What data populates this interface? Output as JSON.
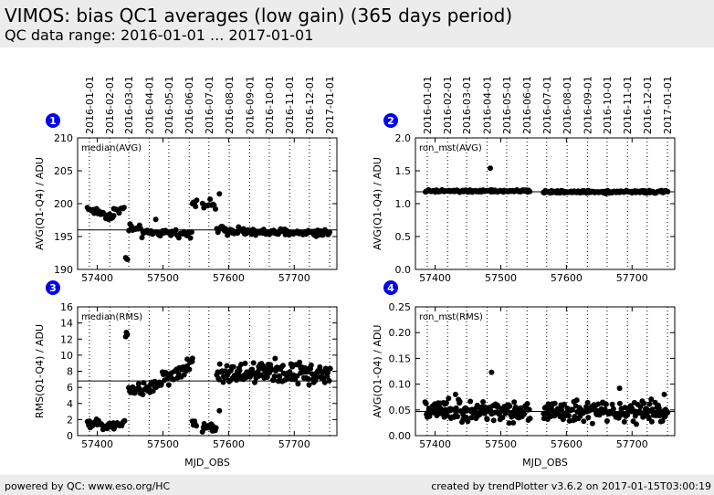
{
  "header": {
    "title": "VIMOS: bias QC1 averages (low gain) (365 days period)",
    "subtitle": "QC data range: 2016-01-01 ... 2017-01-01"
  },
  "footer": {
    "left": "powered by QC: www.eso.org/HC",
    "right": "created by trendPlotter v3.6.2 on 2017-01-15T03:00:19"
  },
  "date_ticks": [
    "2016-01-01",
    "2016-02-01",
    "2016-03-01",
    "2016-04-01",
    "2016-05-01",
    "2016-06-01",
    "2016-07-01",
    "2016-08-01",
    "2016-09-01",
    "2016-10-01",
    "2016-11-01",
    "2016-12-01",
    "2017-01-01"
  ],
  "date_tick_mjd": [
    57388,
    57419,
    57448,
    57479,
    57509,
    57540,
    57570,
    57601,
    57632,
    57662,
    57693,
    57723,
    57754
  ],
  "colors": {
    "badge": "#0000ee",
    "points": "#000000",
    "header_bg": "#ececec"
  },
  "chart_data": [
    {
      "id": "1",
      "type": "scatter",
      "label": "median(AVG)",
      "xlabel": "",
      "ylabel": "AVG(Q1-Q4) / ADU",
      "xlim": [
        57370,
        57765
      ],
      "ylim": [
        190,
        210
      ],
      "yticks": [
        "190",
        "195",
        "200",
        "205",
        "210"
      ],
      "xticks": [
        "57400",
        "57500",
        "57600",
        "57700"
      ],
      "reference_line": 196,
      "segments": [
        {
          "x0": 57385,
          "x1": 57425,
          "y": 199.3,
          "slope": -0.035,
          "noise": 0.5,
          "step": 2
        },
        {
          "x0": 57425,
          "x1": 57442,
          "y": 199.1,
          "slope": 0,
          "noise": 0.5,
          "step": 2
        },
        {
          "x0": 57443,
          "x1": 57447,
          "y": 191.7,
          "slope": 0,
          "noise": 0.3,
          "step": 1.5
        },
        {
          "x0": 57448,
          "x1": 57470,
          "y": 196.2,
          "slope": -0.02,
          "noise": 0.6,
          "step": 2
        },
        {
          "x0": 57470,
          "x1": 57545,
          "y": 195.5,
          "slope": 0,
          "noise": 0.4,
          "step": 2
        },
        {
          "x0": 57545,
          "x1": 57552,
          "y": 200.3,
          "slope": 0,
          "noise": 0.4,
          "step": 1.5
        },
        {
          "x0": 57560,
          "x1": 57581,
          "y": 199.8,
          "slope": 0,
          "noise": 0.5,
          "step": 2
        },
        {
          "x0": 57582,
          "x1": 57625,
          "y": 196.0,
          "slope": 0,
          "noise": 0.5,
          "step": 1.5
        },
        {
          "x0": 57625,
          "x1": 57755,
          "y": 195.6,
          "slope": 0,
          "noise": 0.45,
          "step": 1.5
        }
      ],
      "outliers": [
        [
          57586,
          201.5
        ],
        [
          57489,
          197.6
        ]
      ]
    },
    {
      "id": "2",
      "type": "scatter",
      "label": "ron_mst(AVG)",
      "xlabel": "",
      "ylabel": "AVG(Q1-Q4) / ADU",
      "xlim": [
        57370,
        57765
      ],
      "ylim": [
        0.0,
        2.0
      ],
      "yticks": [
        "0.0",
        "0.5",
        "1.0",
        "1.5",
        "2.0"
      ],
      "xticks": [
        "57400",
        "57500",
        "57600",
        "57700"
      ],
      "reference_line": 1.18,
      "segments": [
        {
          "x0": 57385,
          "x1": 57545,
          "y": 1.19,
          "slope": 0,
          "noise": 0.015,
          "step": 1.5
        },
        {
          "x0": 57565,
          "x1": 57755,
          "y": 1.18,
          "slope": 0,
          "noise": 0.015,
          "step": 1.5
        }
      ],
      "outliers": [
        [
          57484,
          1.54
        ]
      ]
    },
    {
      "id": "3",
      "type": "scatter",
      "label": "median(RMS)",
      "xlabel": "MJD_OBS",
      "ylabel": "RMS(Q1-Q4) / ADU",
      "xlim": [
        57370,
        57765
      ],
      "ylim": [
        0,
        16
      ],
      "yticks": [
        "0",
        "2",
        "4",
        "6",
        "8",
        "10",
        "12",
        "14",
        "16"
      ],
      "xticks": [
        "57400",
        "57500",
        "57600",
        "57700"
      ],
      "reference_line": 6.8,
      "segments": [
        {
          "x0": 57385,
          "x1": 57442,
          "y": 1.4,
          "slope": 0,
          "noise": 0.4,
          "step": 1.5
        },
        {
          "x0": 57443,
          "x1": 57447,
          "y": 12.8,
          "slope": 0,
          "noise": 0.35,
          "step": 1.5
        },
        {
          "x0": 57448,
          "x1": 57465,
          "y": 5.7,
          "slope": 0,
          "noise": 0.8,
          "step": 1.5
        },
        {
          "x0": 57465,
          "x1": 57545,
          "y": 5.5,
          "slope": 0.04,
          "noise": 0.8,
          "step": 1.5
        },
        {
          "x0": 57545,
          "x1": 57552,
          "y": 1.2,
          "slope": 0,
          "noise": 0.4,
          "step": 1.5
        },
        {
          "x0": 57560,
          "x1": 57581,
          "y": 1.1,
          "slope": 0,
          "noise": 0.4,
          "step": 1.5
        },
        {
          "x0": 57582,
          "x1": 57755,
          "y": 7.8,
          "slope": 0,
          "noise": 1.1,
          "step": 1.2
        }
      ],
      "outliers": [
        [
          57586,
          3.1
        ],
        [
          57537,
          9.5
        ],
        [
          57545,
          9.6
        ]
      ]
    },
    {
      "id": "4",
      "type": "scatter",
      "label": "ron_mst(RMS)",
      "xlabel": "MJD_OBS",
      "ylabel": "AVG(Q1-Q4) / ADU",
      "xlim": [
        57370,
        57765
      ],
      "ylim": [
        0.0,
        0.25
      ],
      "yticks": [
        "0.00",
        "0.05",
        "0.10",
        "0.15",
        "0.20",
        "0.25"
      ],
      "xticks": [
        "57400",
        "57500",
        "57600",
        "57700"
      ],
      "reference_line": 0.047,
      "segments": [
        {
          "x0": 57385,
          "x1": 57545,
          "y": 0.047,
          "slope": 0,
          "noise": 0.015,
          "step": 1.1
        },
        {
          "x0": 57565,
          "x1": 57755,
          "y": 0.046,
          "slope": 0,
          "noise": 0.015,
          "step": 1.1
        }
      ],
      "outliers": [
        [
          57486,
          0.123
        ],
        [
          57681,
          0.092
        ],
        [
          57749,
          0.08
        ],
        [
          57431,
          0.08
        ]
      ]
    }
  ]
}
